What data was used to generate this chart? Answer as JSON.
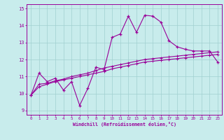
{
  "xlabel": "Windchill (Refroidissement éolien,°C)",
  "x_values": [
    0,
    1,
    2,
    3,
    4,
    5,
    6,
    7,
    8,
    9,
    10,
    11,
    12,
    13,
    14,
    15,
    16,
    17,
    18,
    19,
    20,
    21,
    22,
    23
  ],
  "line1_y": [
    9.9,
    11.2,
    10.7,
    10.9,
    10.2,
    10.7,
    9.3,
    10.3,
    11.55,
    11.4,
    13.3,
    13.5,
    14.55,
    13.6,
    14.6,
    14.55,
    14.2,
    13.1,
    12.75,
    12.6,
    12.5,
    12.5,
    12.5,
    11.85
  ],
  "line2_y": [
    9.9,
    10.55,
    10.6,
    10.75,
    10.85,
    11.0,
    11.1,
    11.2,
    11.35,
    11.5,
    11.6,
    11.7,
    11.8,
    11.9,
    12.0,
    12.05,
    12.1,
    12.15,
    12.2,
    12.25,
    12.3,
    12.35,
    12.4,
    12.45
  ],
  "line3_y": [
    9.9,
    10.4,
    10.55,
    10.7,
    10.8,
    10.9,
    11.0,
    11.1,
    11.2,
    11.3,
    11.45,
    11.55,
    11.65,
    11.75,
    11.85,
    11.9,
    11.95,
    12.0,
    12.05,
    12.1,
    12.15,
    12.2,
    12.25,
    12.3
  ],
  "line_color": "#990099",
  "bg_color": "#c8ecec",
  "grid_color": "#a0d0d0",
  "ylim": [
    8.75,
    15.25
  ],
  "xlim": [
    -0.5,
    23.5
  ],
  "yticks": [
    9,
    10,
    11,
    12,
    13,
    14,
    15
  ],
  "xticks": [
    0,
    1,
    2,
    3,
    4,
    5,
    6,
    7,
    8,
    9,
    10,
    11,
    12,
    13,
    14,
    15,
    16,
    17,
    18,
    19,
    20,
    21,
    22,
    23
  ]
}
